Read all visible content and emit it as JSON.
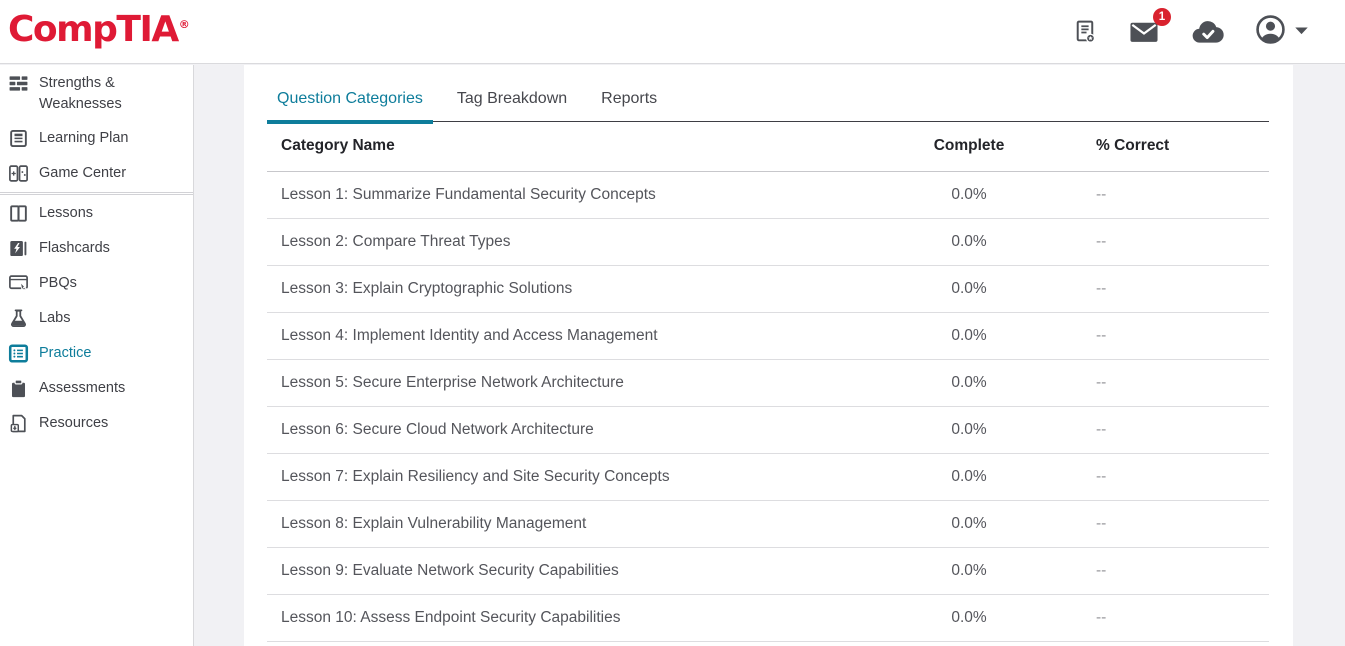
{
  "brand": {
    "logo_text": "CompTIA",
    "registered": "®"
  },
  "colors": {
    "accent": "#0e7d9b",
    "brand_red": "#df1a35",
    "badge_red": "#d9222e"
  },
  "header": {
    "mail_badge": "1",
    "icons": [
      {
        "name": "score-report-icon"
      },
      {
        "name": "mail-icon"
      },
      {
        "name": "cloud-check-icon"
      },
      {
        "name": "account-icon"
      },
      {
        "name": "caret-down-icon"
      }
    ]
  },
  "sidebar": {
    "items": [
      {
        "label": "Strengths & Weaknesses",
        "icon": "strengths-weaknesses-icon",
        "active": false,
        "divider_after": false
      },
      {
        "label": "Learning Plan",
        "icon": "learning-plan-icon",
        "active": false,
        "divider_after": false
      },
      {
        "label": "Game Center",
        "icon": "game-center-icon",
        "active": false,
        "divider_after": true
      },
      {
        "label": "Lessons",
        "icon": "lessons-icon",
        "active": false,
        "divider_after": false
      },
      {
        "label": "Flashcards",
        "icon": "flashcards-icon",
        "active": false,
        "divider_after": false
      },
      {
        "label": "PBQs",
        "icon": "pbqs-icon",
        "active": false,
        "divider_after": false
      },
      {
        "label": "Labs",
        "icon": "labs-icon",
        "active": false,
        "divider_after": false
      },
      {
        "label": "Practice",
        "icon": "practice-icon",
        "active": true,
        "divider_after": false
      },
      {
        "label": "Assessments",
        "icon": "assessments-icon",
        "active": false,
        "divider_after": false
      },
      {
        "label": "Resources",
        "icon": "resources-icon",
        "active": false,
        "divider_after": false
      }
    ]
  },
  "tabs": [
    {
      "label": "Question Categories",
      "active": true
    },
    {
      "label": "Tag Breakdown",
      "active": false
    },
    {
      "label": "Reports",
      "active": false
    }
  ],
  "table": {
    "columns": [
      "Category Name",
      "Complete",
      "% Correct"
    ],
    "rows": [
      {
        "name": "Lesson 1: Summarize Fundamental Security Concepts",
        "complete": "0.0%",
        "correct": "--"
      },
      {
        "name": "Lesson 2: Compare Threat Types",
        "complete": "0.0%",
        "correct": "--"
      },
      {
        "name": "Lesson 3: Explain Cryptographic Solutions",
        "complete": "0.0%",
        "correct": "--"
      },
      {
        "name": "Lesson 4: Implement Identity and Access Management",
        "complete": "0.0%",
        "correct": "--"
      },
      {
        "name": "Lesson 5: Secure Enterprise Network Architecture",
        "complete": "0.0%",
        "correct": "--"
      },
      {
        "name": "Lesson 6: Secure Cloud Network Architecture",
        "complete": "0.0%",
        "correct": "--"
      },
      {
        "name": "Lesson 7: Explain Resiliency and Site Security Concepts",
        "complete": "0.0%",
        "correct": "--"
      },
      {
        "name": "Lesson 8: Explain Vulnerability Management",
        "complete": "0.0%",
        "correct": "--"
      },
      {
        "name": "Lesson 9: Evaluate Network Security Capabilities",
        "complete": "0.0%",
        "correct": "--"
      },
      {
        "name": "Lesson 10: Assess Endpoint Security Capabilities",
        "complete": "0.0%",
        "correct": "--"
      }
    ]
  }
}
